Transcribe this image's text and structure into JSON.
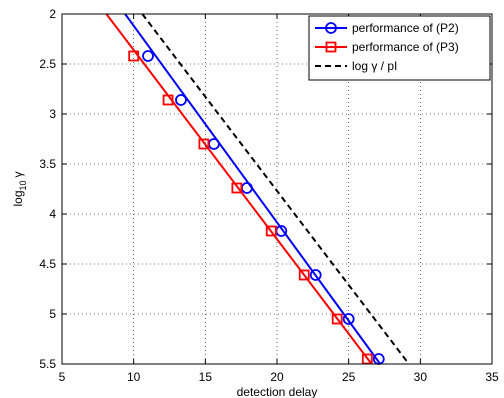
{
  "chart_data": {
    "type": "line",
    "title": "",
    "xlabel": "detection delay",
    "ylabel_base": "log",
    "ylabel_sub": "10",
    "ylabel_var": "γ",
    "xlim": [
      5,
      35
    ],
    "ylim": [
      2,
      5.5
    ],
    "y_reversed": true,
    "grid": true,
    "legend_position": "top-right",
    "xticks": [
      "5",
      "10",
      "15",
      "20",
      "25",
      "30",
      "35"
    ],
    "yticks": [
      "2",
      "2.5",
      "3",
      "3.5",
      "4",
      "4.5",
      "5",
      "5.5"
    ],
    "series": [
      {
        "name": "performance of (P2)",
        "color": "#0000ff",
        "marker": "circle",
        "dash": "solid",
        "line_x": [
          9.4,
          27.2
        ],
        "line_y": [
          2.0,
          5.5
        ],
        "x": [
          11.0,
          13.3,
          15.6,
          17.9,
          20.3,
          22.7,
          25.0,
          27.1
        ],
        "y": [
          2.42,
          2.86,
          3.3,
          3.74,
          4.17,
          4.61,
          5.05,
          5.45
        ]
      },
      {
        "name": "performance of (P3)",
        "color": "#ff0000",
        "marker": "square",
        "dash": "solid",
        "line_x": [
          8.1,
          26.6
        ],
        "line_y": [
          2.0,
          5.5
        ],
        "x": [
          10.0,
          12.4,
          14.9,
          17.2,
          19.6,
          21.9,
          24.2,
          26.3
        ],
        "y": [
          2.42,
          2.86,
          3.3,
          3.74,
          4.17,
          4.61,
          5.05,
          5.45
        ]
      },
      {
        "name": "log γ / pI",
        "color": "#000000",
        "marker": "none",
        "dash": "dashed",
        "line_x": [
          10.6,
          29.2
        ],
        "line_y": [
          2.0,
          5.5
        ],
        "x": [],
        "y": []
      }
    ]
  }
}
